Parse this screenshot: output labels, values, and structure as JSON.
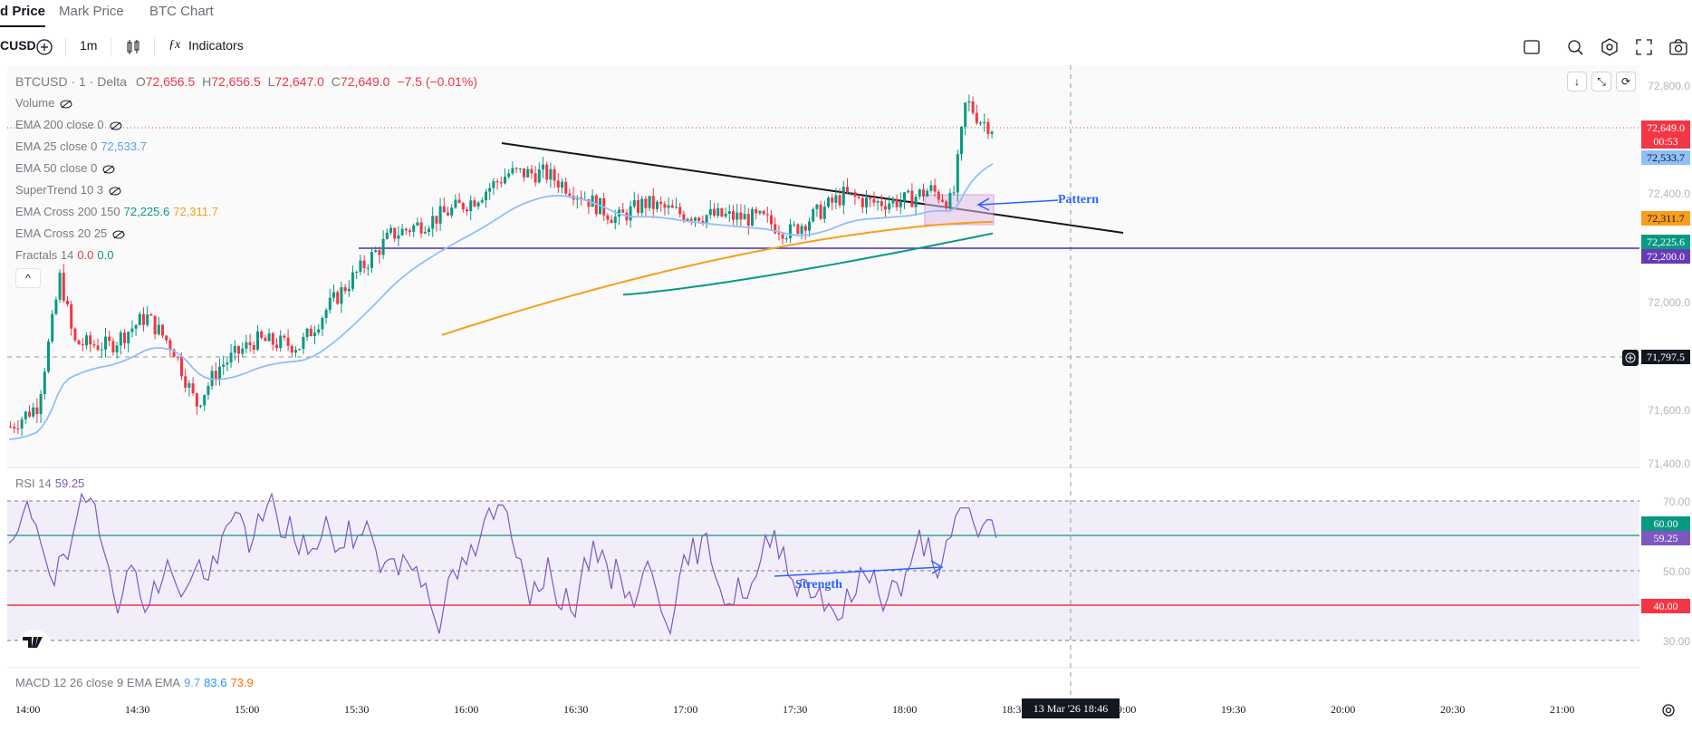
{
  "tabs": [
    "d Price",
    "Mark Price",
    "BTC Chart"
  ],
  "toolbar": {
    "symbol": "CUSD",
    "interval": "1m",
    "indicators_label": "Indicators"
  },
  "legend": {
    "symbol": "BTCUSD · 1 · Delta",
    "ohlc": {
      "o_label": "O",
      "o": "72,656.5",
      "h_label": "H",
      "h": "72,656.5",
      "l_label": "L",
      "l": "72,647.0",
      "c_label": "C",
      "c": "72,649.0",
      "change": "−7.5 (−0.01%)"
    },
    "volume": "Volume",
    "ema200": "EMA 200 close 0",
    "ema25": "EMA 25 close 0",
    "ema25_val": "72,533.7",
    "ema50": "EMA 50 close 0",
    "supertrend": "SuperTrend 10 3",
    "emacross": "EMA Cross 200 150",
    "emacross_v1": "72,225.6",
    "emacross_v2": "72,311.7",
    "emacross2": "EMA Cross 20 25",
    "fractals": "Fractals 14",
    "fractals_v1": "0.0",
    "fractals_v2": "0.0"
  },
  "rsi": {
    "label": "RSI 14",
    "value": "59.25"
  },
  "macd": {
    "label": "MACD 12 26 close 9 EMA EMA",
    "v1": "9.7",
    "v2": "83.6",
    "v3": "73.9"
  },
  "price_axis": [
    "72,800.0",
    "72,400.0",
    "72,000.0",
    "71,600.0",
    "71,400.0"
  ],
  "price_labels": {
    "last": "72,649.0",
    "countdown": "00:53",
    "ema25": "72,533.7",
    "orange": "72,311.7",
    "green": "72,225.6",
    "line": "72,200.0",
    "cursor": "71,797.5"
  },
  "rsi_axis": {
    "a": "70.00",
    "b": "60.00",
    "c": "59.25",
    "d": "50.00",
    "e": "40.00",
    "f": "30.00"
  },
  "time_axis": [
    "14:00",
    "14:30",
    "15:00",
    "15:30",
    "16:00",
    "16:30",
    "17:00",
    "17:30",
    "18:00",
    "18:30",
    "19:00",
    "19:30",
    "20:00",
    "20:30",
    "21:00"
  ],
  "cursor_time": "13 Mar '26   18:46",
  "annotations": {
    "pattern": "Pattern",
    "strength": "Strength"
  },
  "colors": {
    "up": "#089981",
    "down": "#f23645",
    "ema25": "#90bff9",
    "orange": "#f89d1c",
    "green": "#089981",
    "purple": "#673ab7",
    "rsi": "#7e57c2"
  }
}
